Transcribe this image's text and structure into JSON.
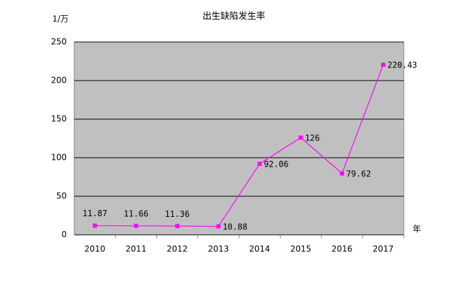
{
  "chart_data": {
    "type": "line",
    "title": "出生缺陷发生率",
    "y_label": "1/万",
    "x_label": "年",
    "categories": [
      "2010",
      "2011",
      "2012",
      "2013",
      "2014",
      "2015",
      "2016",
      "2017"
    ],
    "series": [
      {
        "color": "#ff00ff",
        "values": [
          11.87,
          11.66,
          11.36,
          10.88,
          92.06,
          126,
          79.62,
          220.43
        ]
      }
    ],
    "ylim": [
      0,
      250
    ],
    "yticks": [
      0,
      50,
      100,
      150,
      200,
      250
    ],
    "grid": true
  }
}
